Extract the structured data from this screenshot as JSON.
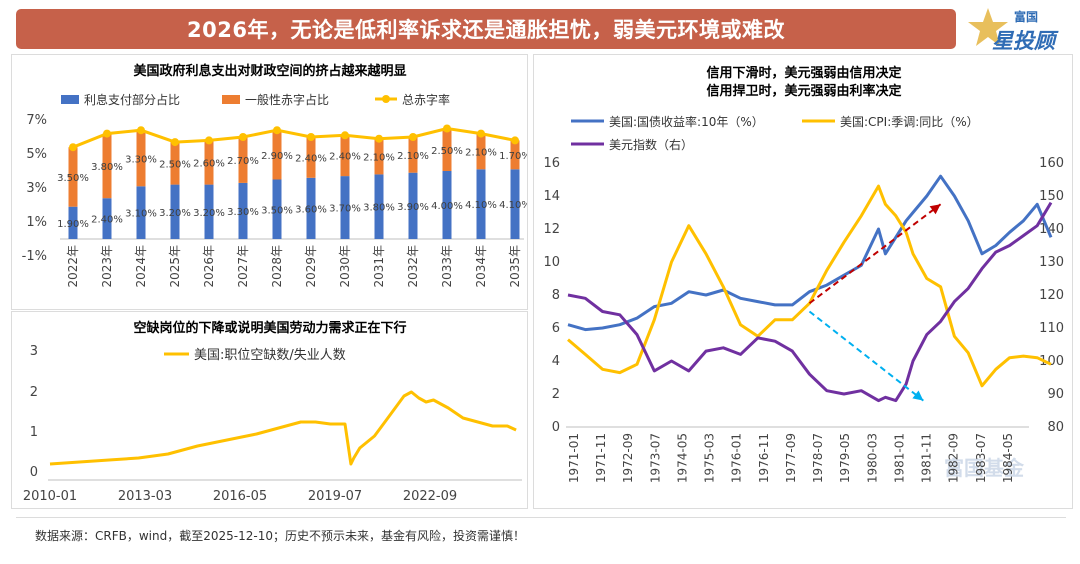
{
  "header": {
    "title": "2026年，无论是低利率诉求还是通胀担忧，弱美元环境或难改",
    "logo_top": "富国",
    "logo_main": "星投顾"
  },
  "footer": {
    "source": "数据来源：CRFB，wind，截至2025-12-10；历史不预示未来，基金有风险，投资需谨慎！"
  },
  "colors": {
    "banner": "#c6614a",
    "blue": "#4472c4",
    "orange": "#ed7d31",
    "gold": "#ffc000",
    "purple": "#7030a0",
    "dark_red": "#c00000",
    "cyan": "#00b0f0"
  },
  "chart_data": [
    {
      "type": "bar",
      "title": "美国政府利息支出对财政空间的挤占越来越明显",
      "legend": [
        "利息支付部分占比",
        "一般性赤字占比",
        "总赤字率"
      ],
      "categories": [
        "2022年",
        "2023年",
        "2024年",
        "2025年",
        "2026年",
        "2027年",
        "2028年",
        "2029年",
        "2030年",
        "2031年",
        "2032年",
        "2033年",
        "2034年",
        "2035年"
      ],
      "series": [
        {
          "name": "利息支付部分占比",
          "kind": "stacked-bar",
          "values": [
            1.9,
            2.4,
            3.1,
            3.2,
            3.2,
            3.3,
            3.5,
            3.6,
            3.7,
            3.8,
            3.9,
            4.0,
            4.1,
            4.1
          ],
          "labels": [
            "1.90%",
            "2.40%",
            "3.10%",
            "3.20%",
            "3.20%",
            "3.30%",
            "3.50%",
            "3.60%",
            "3.70%",
            "3.80%",
            "3.90%",
            "4.00%",
            "4.10%",
            "4.10%"
          ]
        },
        {
          "name": "一般性赤字占比",
          "kind": "stacked-bar",
          "values": [
            3.5,
            3.8,
            3.3,
            2.5,
            2.6,
            2.7,
            2.9,
            2.4,
            2.4,
            2.1,
            2.1,
            2.5,
            2.1,
            1.7
          ],
          "labels": [
            "3.50%",
            "3.80%",
            "3.30%",
            "2.50%",
            "2.60%",
            "2.70%",
            "2.90%",
            "2.40%",
            "2.40%",
            "2.10%",
            "2.10%",
            "2.50%",
            "2.10%",
            "1.70%"
          ]
        },
        {
          "name": "总赤字率",
          "kind": "line",
          "values": [
            5.4,
            6.2,
            6.4,
            5.7,
            5.8,
            6.0,
            6.4,
            6.0,
            6.1,
            5.9,
            6.0,
            6.5,
            6.2,
            5.8
          ]
        }
      ],
      "yticks": [
        "7%",
        "5%",
        "3%",
        "1%",
        "-1%"
      ],
      "ylim": [
        -1,
        7
      ]
    },
    {
      "type": "line",
      "title": "空缺岗位的下降或说明美国劳动力需求正在下行",
      "legend": [
        "美国:职位空缺数/失业人数"
      ],
      "xticks": [
        "2010-01",
        "2013-03",
        "2016-05",
        "2019-07",
        "2022-09"
      ],
      "yticks": [
        "3",
        "2",
        "1",
        "0"
      ],
      "ylim": [
        0,
        3
      ],
      "x": [
        2010.0,
        2011.0,
        2012.0,
        2013.0,
        2014.0,
        2015.0,
        2016.0,
        2017.0,
        2018.0,
        2018.5,
        2019.0,
        2019.5,
        2020.0,
        2020.2,
        2020.3,
        2020.5,
        2021.0,
        2021.5,
        2022.0,
        2022.25,
        2022.5,
        2022.75,
        2023.0,
        2023.5,
        2024.0,
        2024.5,
        2025.0,
        2025.5,
        2025.8
      ],
      "y": [
        0.2,
        0.25,
        0.3,
        0.35,
        0.45,
        0.65,
        0.8,
        0.95,
        1.15,
        1.25,
        1.25,
        1.2,
        1.2,
        0.2,
        0.35,
        0.6,
        0.9,
        1.4,
        1.9,
        2.0,
        1.85,
        1.75,
        1.8,
        1.6,
        1.35,
        1.25,
        1.15,
        1.15,
        1.05
      ]
    },
    {
      "type": "line",
      "title": [
        "信用下滑时，美元强弱由信用决定",
        "信用捍卫时，美元强弱由利率决定"
      ],
      "legend": [
        "美国:国债收益率:10年（%）",
        "美国:CPI:季调:同比（%）",
        "美元指数（右）"
      ],
      "xticks": [
        "1971-01",
        "1971-11",
        "1972-09",
        "1973-07",
        "1974-05",
        "1975-03",
        "1976-01",
        "1976-11",
        "1977-09",
        "1978-07",
        "1979-05",
        "1980-03",
        "1981-01",
        "1981-11",
        "1982-09",
        "1983-07",
        "1984-05"
      ],
      "yticks_left": [
        "16",
        "14",
        "12",
        "10",
        "8",
        "6",
        "4",
        "2",
        "0"
      ],
      "yticks_right": [
        "160",
        "150",
        "140",
        "130",
        "120",
        "110",
        "100",
        "90",
        "80"
      ],
      "ylim_left": [
        0,
        16
      ],
      "ylim_right": [
        80,
        160
      ],
      "x": [
        1971.0,
        1971.5,
        1972.0,
        1972.5,
        1973.0,
        1973.5,
        1974.0,
        1974.5,
        1975.0,
        1975.5,
        1976.0,
        1976.5,
        1977.0,
        1977.5,
        1978.0,
        1978.5,
        1979.0,
        1979.5,
        1980.0,
        1980.2,
        1980.5,
        1980.8,
        1981.0,
        1981.4,
        1981.8,
        1982.2,
        1982.6,
        1983.0,
        1983.4,
        1983.8,
        1984.2,
        1984.6,
        1985.0
      ],
      "series": [
        {
          "name": "美国:国债收益率:10年（%）",
          "values": [
            6.2,
            5.9,
            6.0,
            6.2,
            6.6,
            7.3,
            7.5,
            8.2,
            8.0,
            8.3,
            7.8,
            7.6,
            7.4,
            7.4,
            8.2,
            8.6,
            9.2,
            9.8,
            12.0,
            10.5,
            11.5,
            12.5,
            13.0,
            14.0,
            15.2,
            14.0,
            12.5,
            10.5,
            11.0,
            11.8,
            12.5,
            13.5,
            11.5
          ]
        },
        {
          "name": "美国:CPI:季调:同比（%）",
          "values": [
            5.3,
            4.4,
            3.5,
            3.3,
            3.8,
            6.5,
            10.0,
            12.2,
            10.5,
            8.5,
            6.2,
            5.5,
            6.5,
            6.5,
            7.5,
            9.5,
            11.2,
            12.8,
            14.6,
            13.5,
            12.8,
            11.8,
            10.5,
            9.0,
            8.5,
            5.5,
            4.5,
            2.5,
            3.5,
            4.2,
            4.3,
            4.2,
            3.8
          ]
        },
        {
          "name": "美元指数（右）",
          "axis": "right",
          "values": [
            120,
            119,
            115,
            114,
            108,
            97,
            100,
            97,
            103,
            104,
            102,
            107,
            106,
            103,
            96,
            91,
            90,
            91,
            88,
            89,
            88,
            93,
            100,
            108,
            112,
            118,
            122,
            128,
            133,
            135,
            138,
            141,
            148
          ]
        }
      ],
      "arrows": [
        {
          "color": "dark_red",
          "from": [
            1978.0,
            7.5
          ],
          "to": [
            1981.8,
            13.5
          ]
        },
        {
          "color": "cyan",
          "from": [
            1978.0,
            7.0
          ],
          "to": [
            1981.3,
            1.6
          ]
        }
      ]
    }
  ],
  "watermark": "富国基金"
}
